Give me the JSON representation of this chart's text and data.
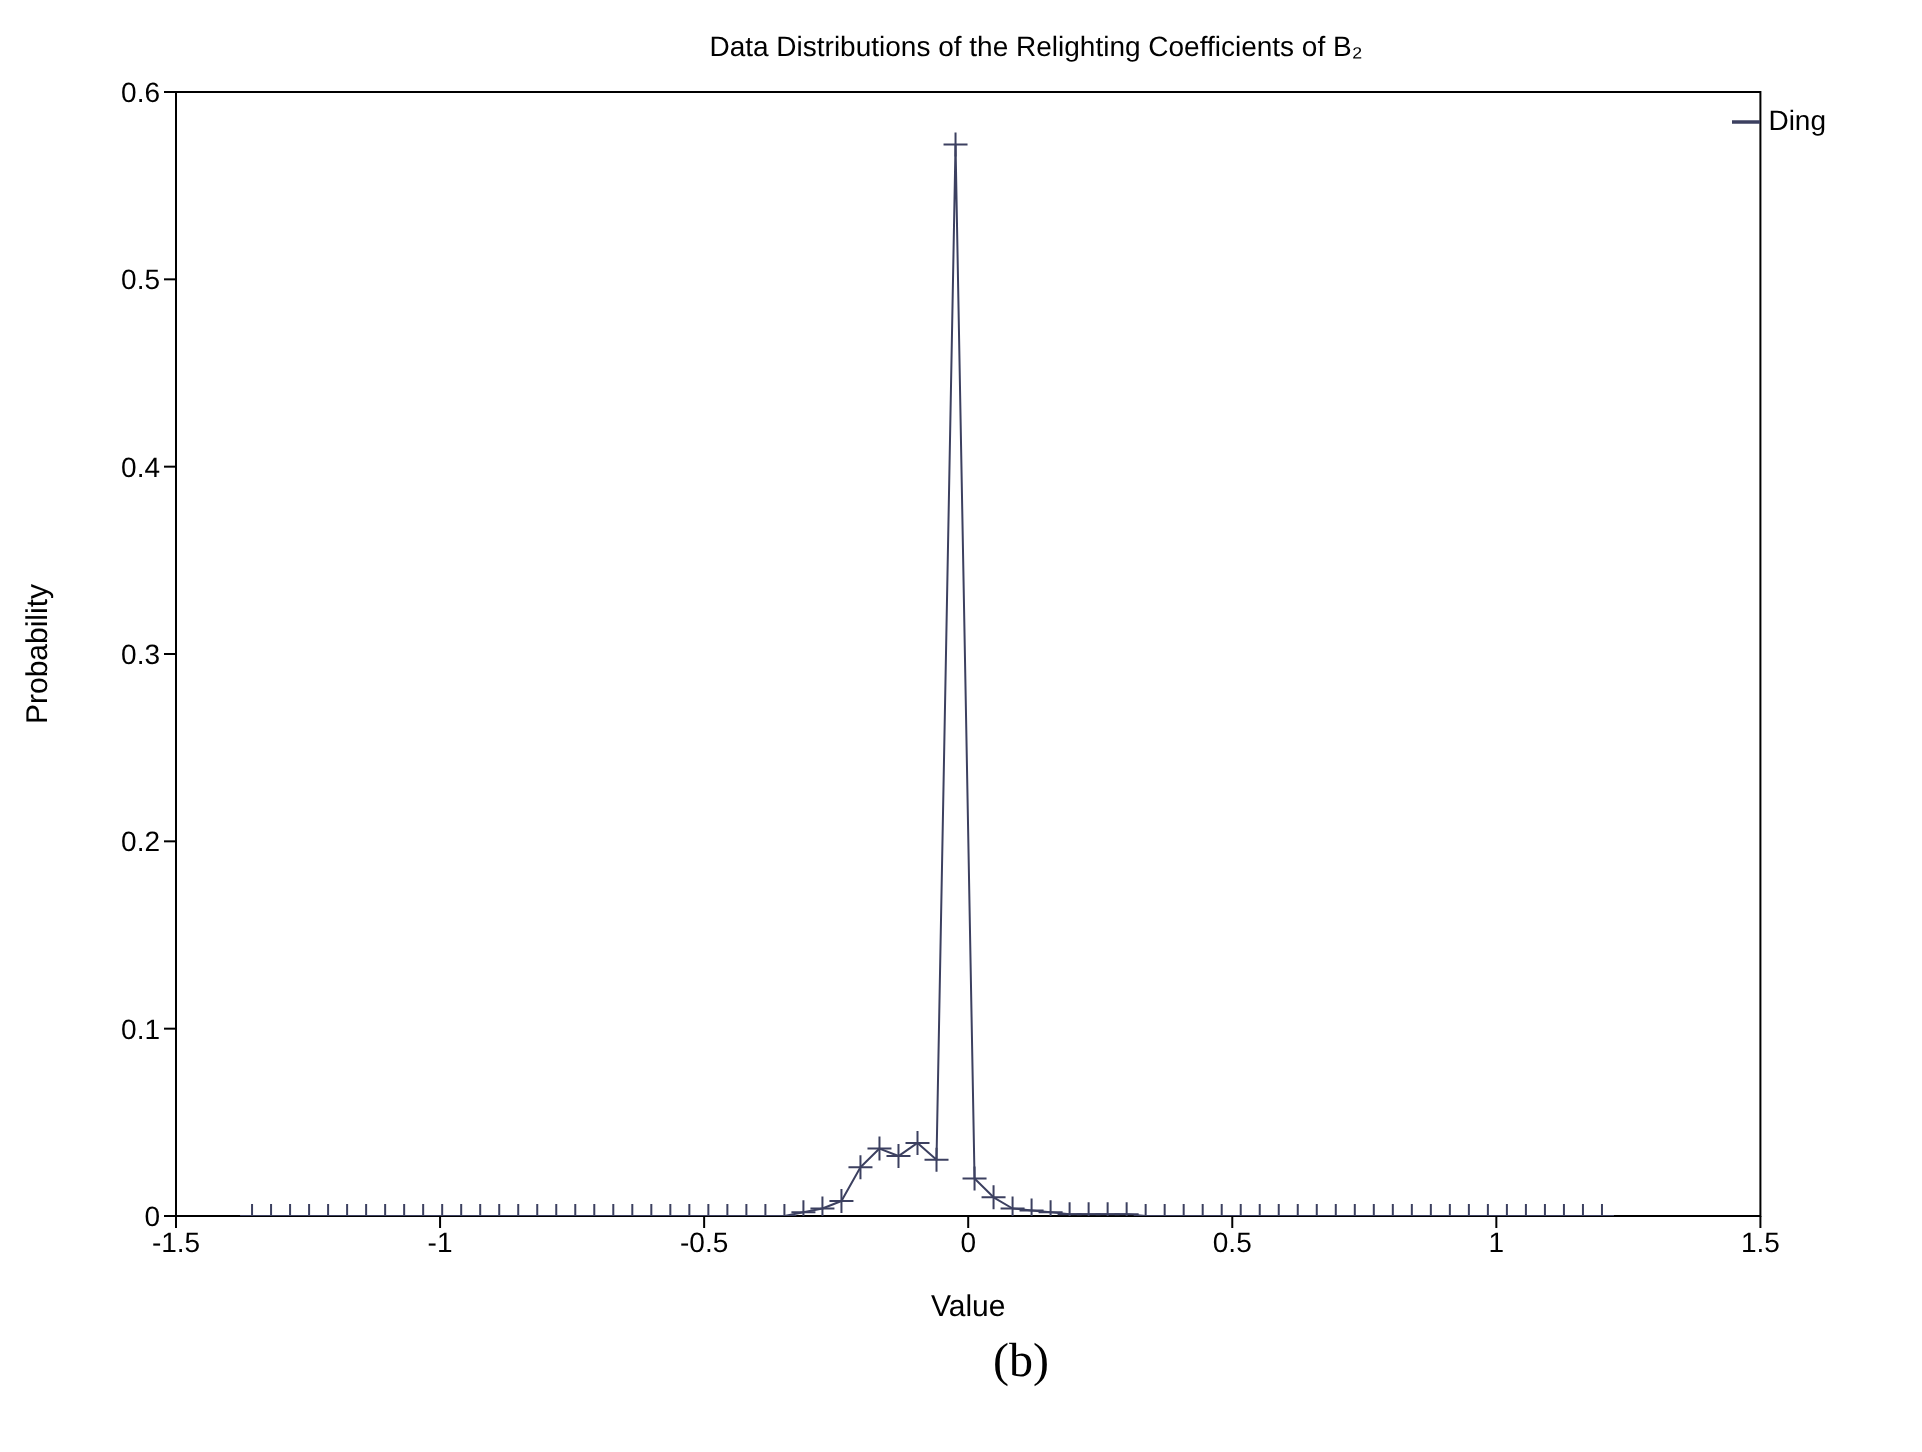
{
  "chart_data": {
    "type": "line",
    "title": "Data Distributions of the Relighting Coefficients of B₂",
    "xlabel": "Value",
    "ylabel": "Probability",
    "annotations": [
      "(b)"
    ],
    "x": [
      -1.356,
      -1.32,
      -1.284,
      -1.248,
      -1.212,
      -1.176,
      -1.14,
      -1.104,
      -1.068,
      -1.032,
      -0.996,
      -0.96,
      -0.924,
      -0.888,
      -0.852,
      -0.816,
      -0.78,
      -0.744,
      -0.708,
      -0.672,
      -0.636,
      -0.6,
      -0.564,
      -0.528,
      -0.492,
      -0.456,
      -0.42,
      -0.384,
      -0.348,
      -0.312,
      -0.276,
      -0.24,
      -0.204,
      -0.168,
      -0.132,
      -0.096,
      -0.06,
      -0.024,
      0.012,
      0.048,
      0.084,
      0.12,
      0.156,
      0.192,
      0.228,
      0.264,
      0.3,
      0.336,
      0.372,
      0.408,
      0.444,
      0.48,
      0.516,
      0.552,
      0.588,
      0.624,
      0.66,
      0.696,
      0.732,
      0.768,
      0.804,
      0.84,
      0.876,
      0.912,
      0.948,
      0.984,
      1.02,
      1.056,
      1.092,
      1.128,
      1.164,
      1.2
    ],
    "series": [
      {
        "name": "Ding",
        "color": "#3c4060",
        "values": [
          0,
          0,
          0,
          0,
          0,
          0,
          0,
          0,
          0,
          0,
          0,
          0,
          0,
          0,
          0,
          0,
          0,
          0,
          0,
          0,
          0,
          0,
          0,
          0,
          0,
          0,
          0,
          0,
          0,
          0.002,
          0.004,
          0.008,
          0.026,
          0.036,
          0.032,
          0.039,
          0.03,
          0.572,
          0.02,
          0.01,
          0.004,
          0.003,
          0.002,
          0.001,
          0.001,
          0.001,
          0.001,
          0,
          0,
          0,
          0,
          0,
          0,
          0,
          0,
          0,
          0,
          0,
          0,
          0,
          0,
          0,
          0,
          0,
          0,
          0,
          0,
          0,
          0,
          0,
          0,
          0
        ]
      }
    ],
    "xlim": [
      -1.5,
      1.5
    ],
    "xticks": [
      -1.5,
      -1,
      -0.5,
      0,
      0.5,
      1,
      1.5
    ],
    "ylim": [
      0,
      0.6
    ],
    "yticks": [
      0,
      0.1,
      0.2,
      0.3,
      0.4,
      0.5,
      0.6
    ],
    "grid": false,
    "legend": "top right",
    "marker": "cross",
    "line_style": "solid"
  }
}
